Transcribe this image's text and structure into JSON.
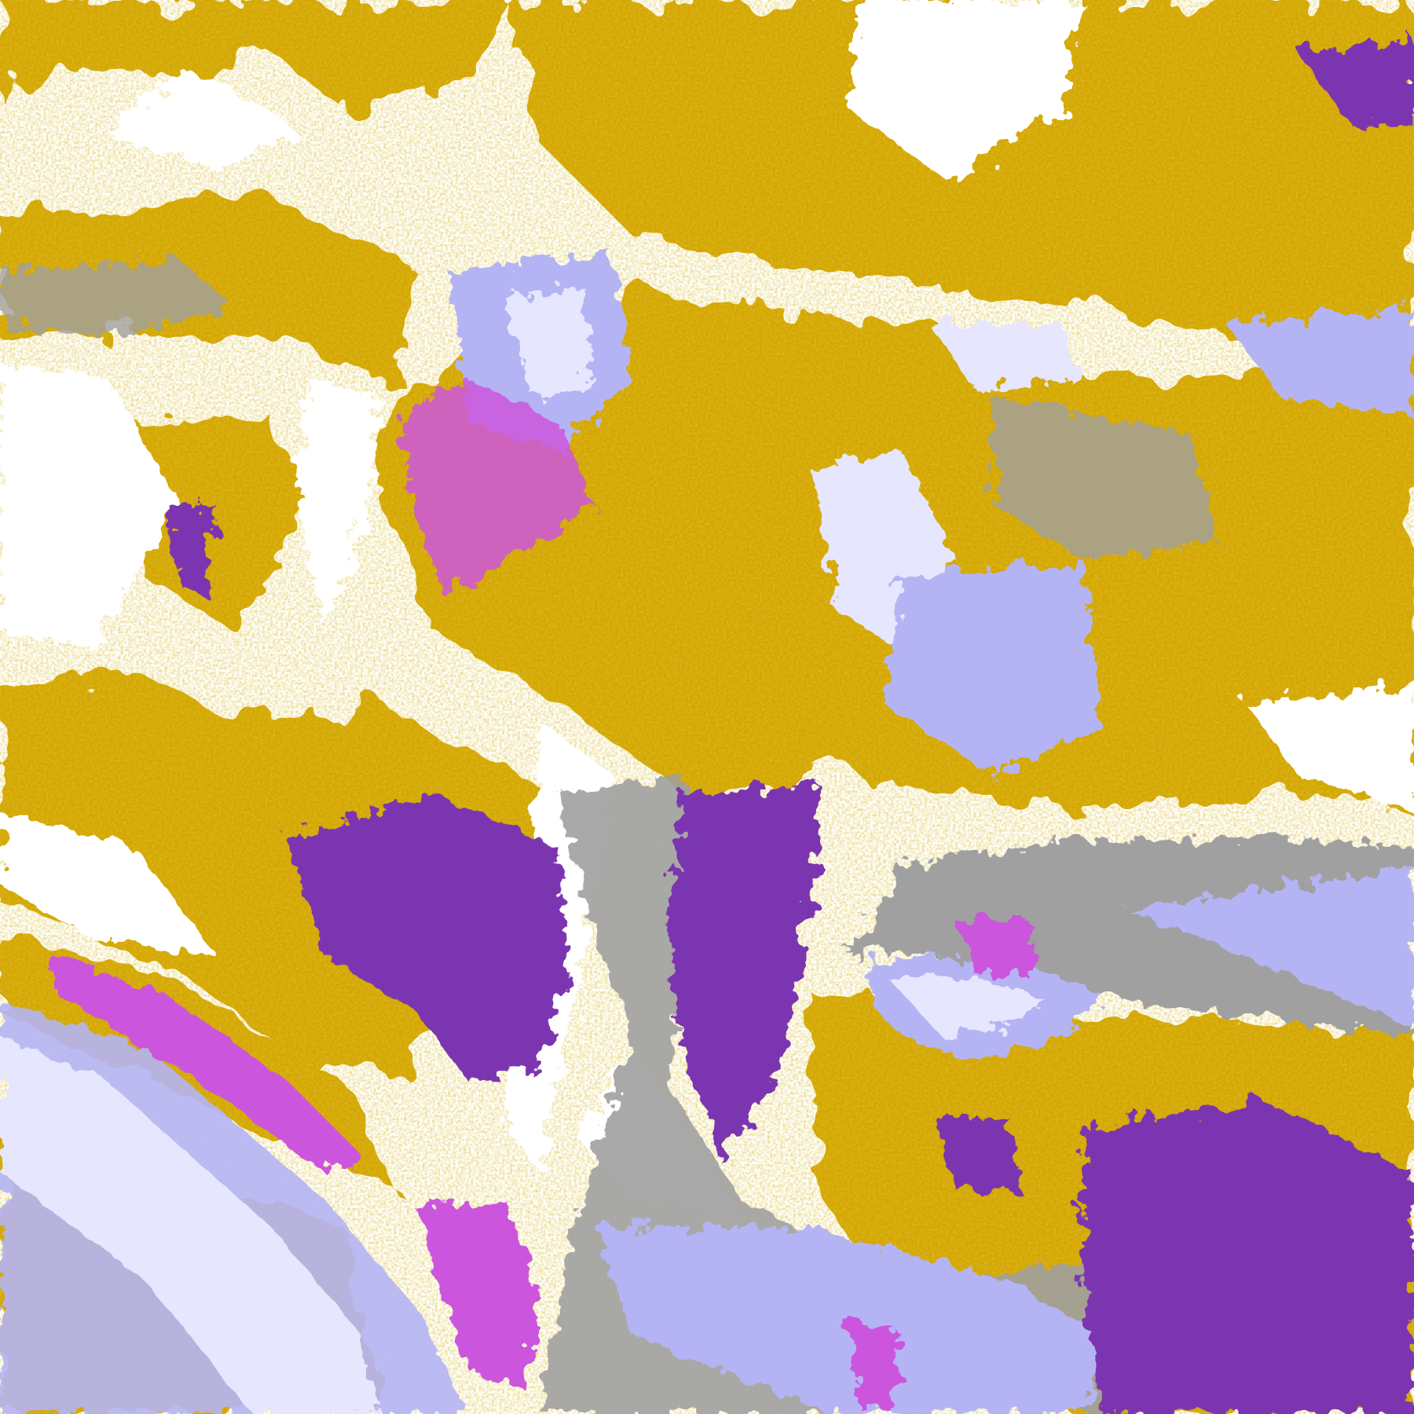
{
  "image": {
    "type": "classified-satellite-cloud-map",
    "palette": {
      "background": "#ffffff",
      "gold": "#d4a600",
      "dark_gold": "#b8860b",
      "purple": "#7b35b0",
      "magenta": "#cc55dd",
      "lavender": "#b4b4f4",
      "pale_lavender": "#e6e6ff",
      "blue_violet": "#8c8cf0",
      "grey": "#a0a0a0"
    }
  }
}
